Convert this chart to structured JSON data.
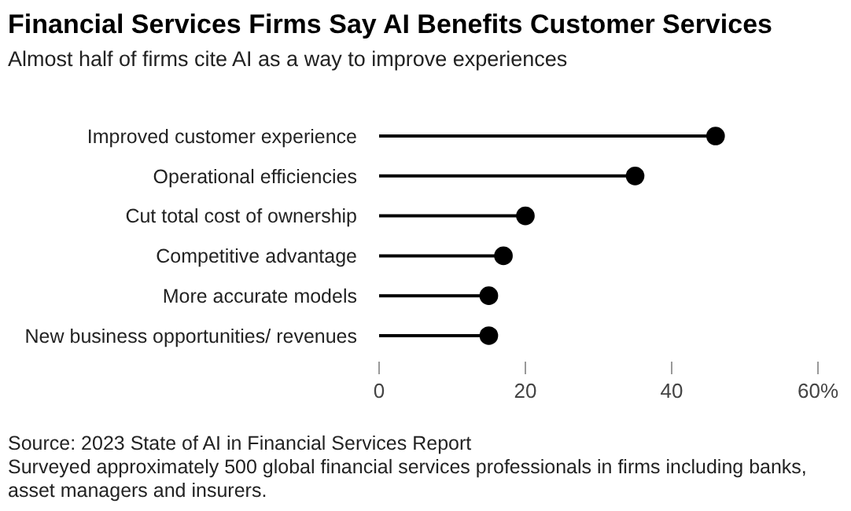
{
  "chart_data": {
    "type": "lollipop",
    "orientation": "horizontal",
    "title": "Financial Services Firms Say AI Benefits Customer Services",
    "subtitle": "Almost half of firms cite AI as a way to improve experiences",
    "categories": [
      "Improved customer experience",
      "Operational efficiencies",
      "Cut total cost of ownership",
      "Competitive advantage",
      "More accurate models",
      "New business opportunities/ revenues"
    ],
    "values": [
      46,
      35,
      20,
      17,
      15,
      15
    ],
    "color": "#000000",
    "xlim": [
      0,
      60
    ],
    "xticks": [
      0,
      20,
      40,
      {
        "value": 60,
        "label": "60%"
      }
    ],
    "marker": "circle",
    "grid": false,
    "annotations": [
      "Source: 2023 State of AI in Financial Services Report",
      "Surveyed approximately 500 global financial services professionals in firms including banks, asset managers and insurers."
    ]
  }
}
